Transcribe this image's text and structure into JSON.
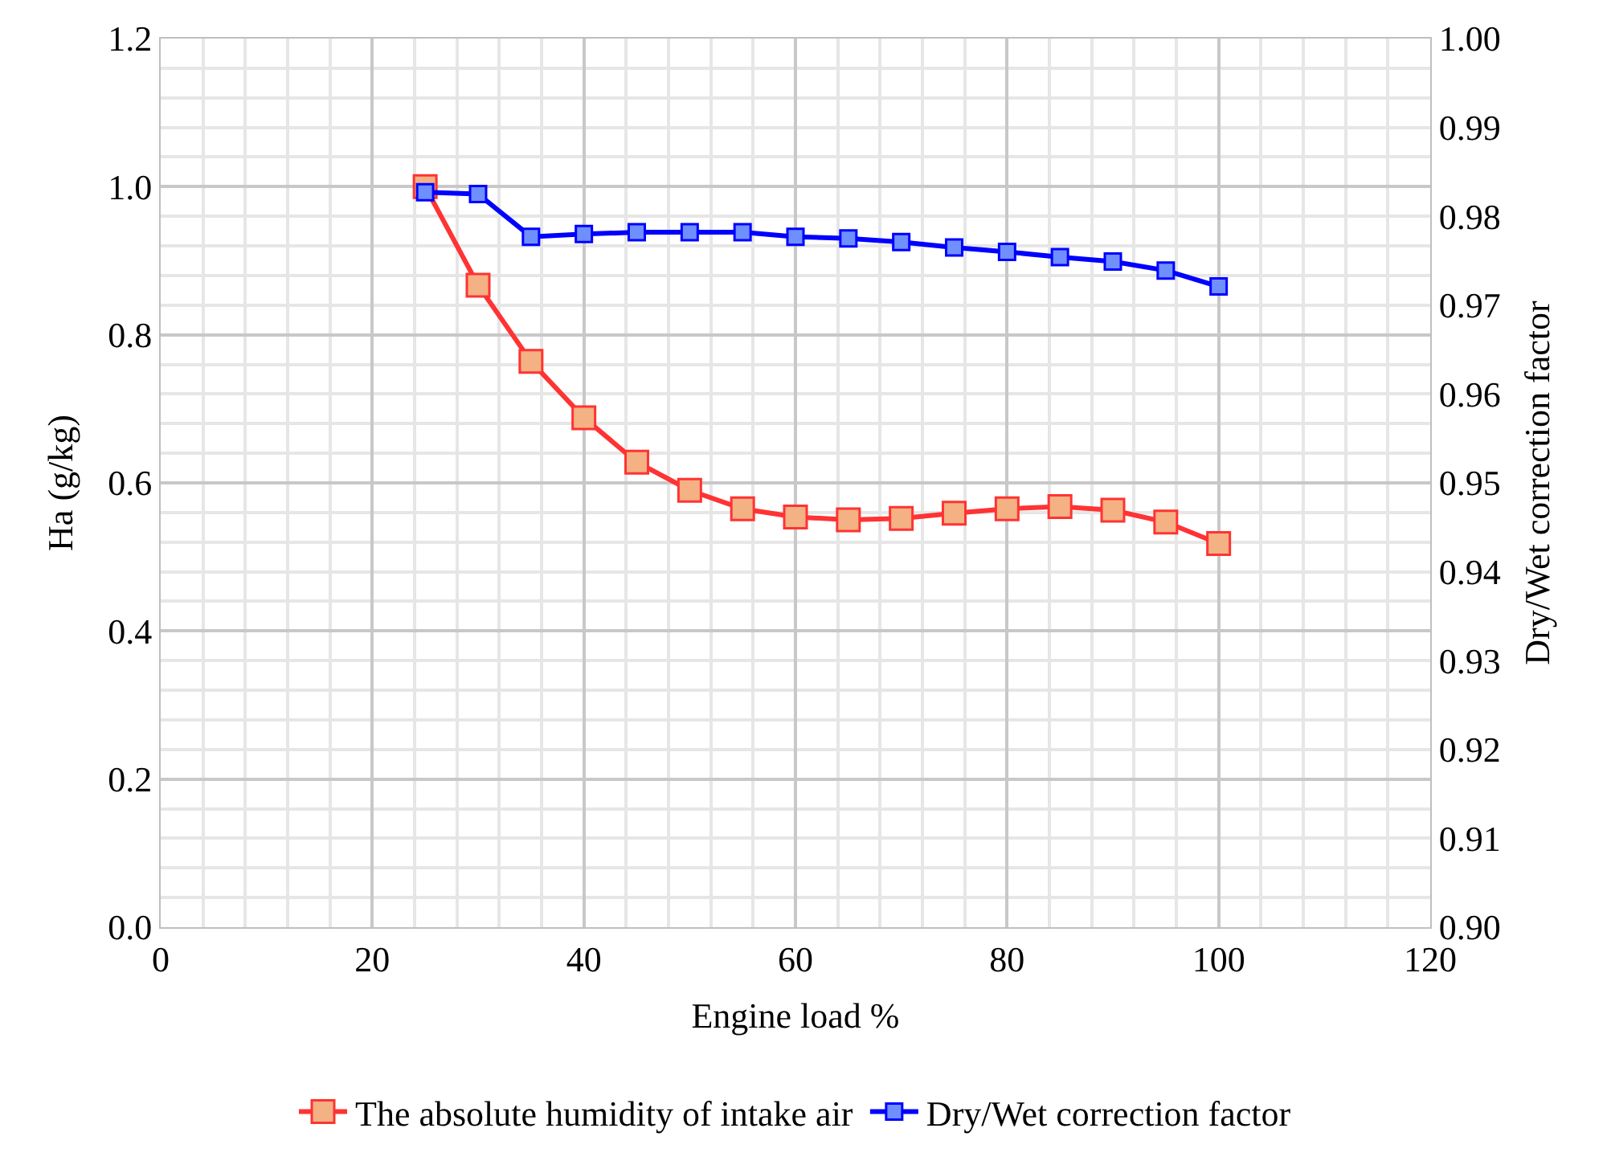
{
  "chart_data": {
    "type": "line",
    "xlabel": "Engine load %",
    "ylabel": "Ha (g/kg)",
    "y2label": "Dry/Wet correction factor",
    "x": [
      25,
      30,
      35,
      40,
      45,
      50,
      55,
      60,
      65,
      70,
      75,
      80,
      85,
      90,
      95,
      100
    ],
    "series": [
      {
        "name": "The absolute humidity of intake air",
        "color": "#ff3333",
        "values": [
          1.0,
          0.867,
          0.764,
          0.688,
          0.628,
          0.59,
          0.565,
          0.554,
          0.55,
          0.552,
          0.559,
          0.565,
          0.568,
          0.563,
          0.547,
          0.518
        ]
      },
      {
        "name": "Dry/Wet correction factor",
        "color": "#0000ff",
        "axis": "y2",
        "values": [
          0.9827,
          0.9825,
          0.9777,
          0.978,
          0.9782,
          0.9782,
          0.9782,
          0.9777,
          0.9775,
          0.9771,
          0.9765,
          0.976,
          0.9754,
          0.9749,
          0.9739,
          0.9721
        ]
      }
    ],
    "xlim": [
      0,
      120
    ],
    "xticks": [
      0,
      20,
      40,
      60,
      80,
      100,
      120
    ],
    "ylim": [
      0,
      1.2
    ],
    "yticks": [
      {
        "value": 0,
        "label": "0.0"
      },
      0.2,
      0.4,
      0.6,
      0.8,
      {
        "value": 1,
        "label": "1.0"
      },
      1.2
    ],
    "y2lim": [
      0.9,
      1.0
    ],
    "y2ticks": [
      {
        "value": 0.9,
        "label": "0.90"
      },
      0.91,
      0.92,
      0.93,
      0.94,
      0.95,
      0.96,
      0.97,
      0.98,
      0.99,
      {
        "value": 1.0,
        "label": "1.00"
      }
    ],
    "grid": true,
    "legend": "bottom",
    "marker": "square",
    "line_style": "solid"
  }
}
